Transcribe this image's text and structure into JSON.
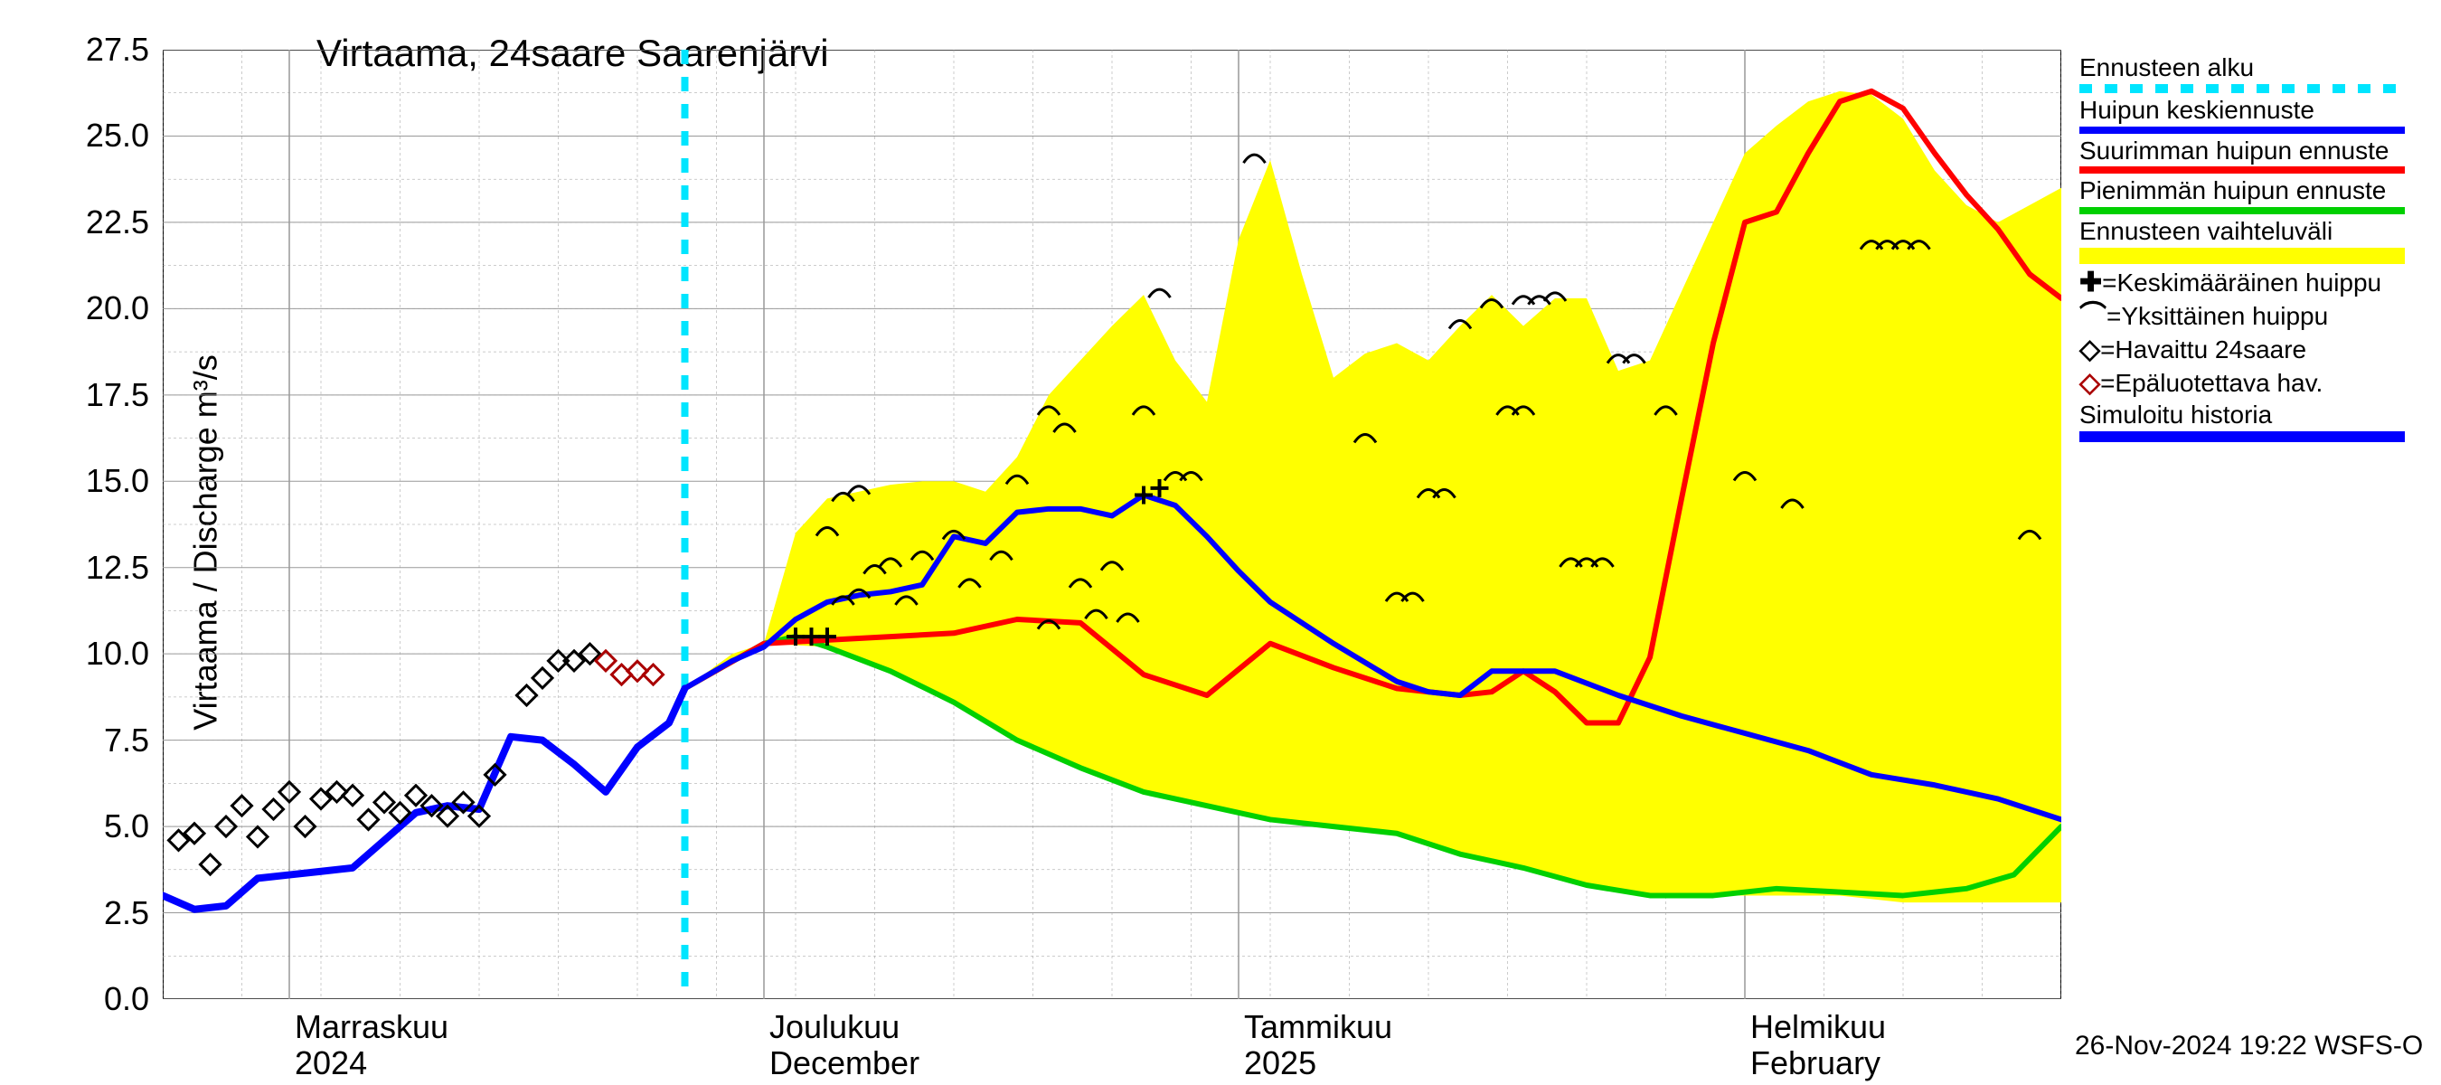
{
  "chart": {
    "type": "line",
    "title": "Virtaama, 24saare Saarenjärvi",
    "title_fontsize": 42,
    "y_label": "Virtaama / Discharge   m³/s",
    "label_fontsize": 36,
    "tick_fontsize": 36,
    "background_color": "#ffffff",
    "grid_color": "#999999",
    "grid_on": true,
    "minor_grid_on": true,
    "ylim": [
      0.0,
      27.5
    ],
    "ytick_step": 2.5,
    "yticks": [
      0.0,
      2.5,
      5.0,
      7.5,
      10.0,
      12.5,
      15.0,
      17.5,
      20.0,
      22.5,
      25.0,
      27.5
    ],
    "xlim": [
      0,
      120
    ],
    "x_major_ticks_days": [
      8,
      38,
      68,
      100
    ],
    "x_minor_step_days": 5,
    "x_tick_labels": [
      {
        "day": 8,
        "line1": "Marraskuu",
        "line2": "2024"
      },
      {
        "day": 38,
        "line1": "Joulukuu",
        "line2": "December"
      },
      {
        "day": 68,
        "line1": "Tammikuu",
        "line2": "2025"
      },
      {
        "day": 100,
        "line1": "Helmikuu",
        "line2": "February"
      }
    ],
    "forecast_start_day": 33,
    "colors": {
      "forecast_start": "#00e5ff",
      "mean_peak": "#0000ff",
      "max_peak": "#ff0000",
      "min_peak": "#00d000",
      "range_fill": "#ffff00",
      "sim_history": "#0000ff",
      "obs_marker_edge": "#000000",
      "unreliable_marker_edge": "#aa0000",
      "avg_peak_marker": "#000000",
      "single_peak_marker": "#000000"
    },
    "line_widths": {
      "mean_peak": 6,
      "max_peak": 6,
      "min_peak": 6,
      "sim_history": 8,
      "forecast_start": 8
    },
    "series": {
      "sim_history_days": [
        0,
        2,
        4,
        6,
        8,
        10,
        12,
        14,
        16,
        18,
        20,
        22,
        24,
        26,
        28,
        30,
        32,
        33
      ],
      "sim_history_vals": [
        3.0,
        2.6,
        2.7,
        3.5,
        3.6,
        3.7,
        3.8,
        4.6,
        5.4,
        5.6,
        5.5,
        7.6,
        7.5,
        6.8,
        6.0,
        7.3,
        8.0,
        9.0
      ],
      "mean_peak_days": [
        33,
        36,
        38,
        40,
        42,
        44,
        46,
        48,
        50,
        52,
        54,
        56,
        58,
        60,
        62,
        64,
        66,
        68,
        70,
        74,
        78,
        80,
        82,
        84,
        88,
        92,
        96,
        100,
        104,
        108,
        112,
        116,
        120
      ],
      "mean_peak_vals": [
        9.0,
        9.8,
        10.2,
        11.0,
        11.5,
        11.7,
        11.8,
        12.0,
        13.4,
        13.2,
        14.1,
        14.2,
        14.2,
        14.0,
        14.6,
        14.3,
        13.4,
        12.4,
        11.5,
        10.3,
        9.2,
        8.9,
        8.8,
        9.5,
        9.5,
        8.8,
        8.2,
        7.7,
        7.2,
        6.5,
        6.2,
        5.8,
        5.2
      ],
      "max_peak_days": [
        33,
        38,
        42,
        46,
        50,
        54,
        58,
        62,
        66,
        70,
        74,
        78,
        82,
        84,
        86,
        88,
        90,
        92,
        94,
        96,
        98,
        100,
        102,
        104,
        106,
        108,
        110,
        112,
        114,
        116,
        118,
        120
      ],
      "max_peak_vals": [
        9.0,
        10.3,
        10.4,
        10.5,
        10.6,
        11.0,
        10.9,
        9.4,
        8.8,
        10.3,
        9.6,
        9.0,
        8.8,
        8.9,
        9.5,
        8.9,
        8.0,
        8.0,
        9.9,
        14.5,
        19.0,
        22.5,
        22.8,
        24.5,
        26.0,
        26.3,
        25.8,
        24.5,
        23.3,
        22.3,
        21.0,
        20.3
      ],
      "min_peak_days": [
        33,
        38,
        40,
        42,
        46,
        50,
        54,
        58,
        62,
        66,
        70,
        74,
        78,
        82,
        86,
        90,
        94,
        98,
        102,
        106,
        110,
        114,
        117,
        120
      ],
      "min_peak_vals": [
        9.0,
        10.3,
        10.5,
        10.2,
        9.5,
        8.6,
        7.5,
        6.7,
        6.0,
        5.6,
        5.2,
        5.0,
        4.8,
        4.2,
        3.8,
        3.3,
        3.0,
        3.0,
        3.2,
        3.1,
        3.0,
        3.2,
        3.6,
        5.0
      ],
      "range_upper_days": [
        33,
        36,
        38,
        40,
        42,
        44,
        46,
        48,
        50,
        52,
        54,
        56,
        58,
        60,
        62,
        64,
        66,
        68,
        70,
        72,
        74,
        76,
        78,
        80,
        82,
        84,
        86,
        88,
        90,
        92,
        94,
        96,
        98,
        100,
        102,
        104,
        106,
        108,
        110,
        112,
        114,
        116,
        118,
        120
      ],
      "range_upper_vals": [
        9.0,
        10.0,
        10.3,
        13.5,
        14.5,
        14.7,
        14.9,
        15.0,
        15.0,
        14.7,
        15.7,
        17.5,
        18.5,
        19.5,
        20.4,
        18.5,
        17.3,
        22.0,
        24.3,
        21.0,
        18.0,
        18.7,
        19.0,
        18.5,
        19.5,
        20.4,
        19.5,
        20.3,
        20.3,
        18.2,
        18.5,
        20.5,
        22.5,
        24.5,
        25.3,
        26.0,
        26.3,
        26.2,
        25.5,
        24.0,
        23.0,
        22.5,
        23.0,
        23.5
      ],
      "range_lower_days": [
        33,
        38,
        42,
        46,
        50,
        54,
        58,
        62,
        66,
        70,
        74,
        78,
        82,
        86,
        90,
        94,
        98,
        102,
        106,
        110,
        114,
        117,
        120
      ],
      "range_lower_vals": [
        9.0,
        10.3,
        10.2,
        9.5,
        8.6,
        7.5,
        6.7,
        6.0,
        5.6,
        5.2,
        5.0,
        4.8,
        4.2,
        3.8,
        3.3,
        3.0,
        3.0,
        3.0,
        3.0,
        2.8,
        2.8,
        2.8,
        2.8
      ]
    },
    "observations": [
      {
        "day": 1,
        "val": 4.6
      },
      {
        "day": 2,
        "val": 4.8
      },
      {
        "day": 3,
        "val": 3.9
      },
      {
        "day": 4,
        "val": 5.0
      },
      {
        "day": 5,
        "val": 5.6
      },
      {
        "day": 6,
        "val": 4.7
      },
      {
        "day": 7,
        "val": 5.5
      },
      {
        "day": 8,
        "val": 6.0
      },
      {
        "day": 9,
        "val": 5.0
      },
      {
        "day": 10,
        "val": 5.8
      },
      {
        "day": 11,
        "val": 6.0
      },
      {
        "day": 12,
        "val": 5.9
      },
      {
        "day": 13,
        "val": 5.2
      },
      {
        "day": 14,
        "val": 5.7
      },
      {
        "day": 15,
        "val": 5.4
      },
      {
        "day": 16,
        "val": 5.9
      },
      {
        "day": 17,
        "val": 5.6
      },
      {
        "day": 18,
        "val": 5.3
      },
      {
        "day": 19,
        "val": 5.7
      },
      {
        "day": 20,
        "val": 5.3
      },
      {
        "day": 21,
        "val": 6.5
      },
      {
        "day": 23,
        "val": 8.8
      },
      {
        "day": 24,
        "val": 9.3
      },
      {
        "day": 25,
        "val": 9.8
      },
      {
        "day": 26,
        "val": 9.8
      },
      {
        "day": 27,
        "val": 10.0
      }
    ],
    "unreliable_obs": [
      {
        "day": 28,
        "val": 9.8
      },
      {
        "day": 29,
        "val": 9.4
      },
      {
        "day": 30,
        "val": 9.5
      },
      {
        "day": 31,
        "val": 9.4
      }
    ],
    "avg_peak_markers": [
      {
        "day": 40,
        "val": 10.5
      },
      {
        "day": 41,
        "val": 10.5
      },
      {
        "day": 42,
        "val": 10.5
      },
      {
        "day": 63,
        "val": 14.8
      },
      {
        "day": 62,
        "val": 14.6
      }
    ],
    "single_peak_markers": [
      {
        "day": 42,
        "val": 13.5
      },
      {
        "day": 43,
        "val": 14.5
      },
      {
        "day": 44,
        "val": 14.7
      },
      {
        "day": 43,
        "val": 11.5
      },
      {
        "day": 44,
        "val": 11.7
      },
      {
        "day": 45,
        "val": 12.4
      },
      {
        "day": 46,
        "val": 12.6
      },
      {
        "day": 47,
        "val": 11.5
      },
      {
        "day": 48,
        "val": 12.8
      },
      {
        "day": 50,
        "val": 13.4
      },
      {
        "day": 51,
        "val": 12.0
      },
      {
        "day": 53,
        "val": 12.8
      },
      {
        "day": 54,
        "val": 15.0
      },
      {
        "day": 56,
        "val": 10.8
      },
      {
        "day": 56,
        "val": 17.0
      },
      {
        "day": 57,
        "val": 16.5
      },
      {
        "day": 58,
        "val": 12.0
      },
      {
        "day": 59,
        "val": 11.1
      },
      {
        "day": 60,
        "val": 12.5
      },
      {
        "day": 61,
        "val": 11.0
      },
      {
        "day": 62,
        "val": 17.0
      },
      {
        "day": 63,
        "val": 20.4
      },
      {
        "day": 64,
        "val": 15.1
      },
      {
        "day": 65,
        "val": 15.1
      },
      {
        "day": 69,
        "val": 24.3
      },
      {
        "day": 76,
        "val": 16.2
      },
      {
        "day": 78,
        "val": 11.6
      },
      {
        "day": 79,
        "val": 11.6
      },
      {
        "day": 80,
        "val": 14.6
      },
      {
        "day": 81,
        "val": 14.6
      },
      {
        "day": 82,
        "val": 19.5
      },
      {
        "day": 84,
        "val": 20.1
      },
      {
        "day": 85,
        "val": 17.0
      },
      {
        "day": 86,
        "val": 17.0
      },
      {
        "day": 86,
        "val": 20.2
      },
      {
        "day": 87,
        "val": 20.2
      },
      {
        "day": 88,
        "val": 20.3
      },
      {
        "day": 89,
        "val": 12.6
      },
      {
        "day": 90,
        "val": 12.6
      },
      {
        "day": 91,
        "val": 12.6
      },
      {
        "day": 92,
        "val": 18.5
      },
      {
        "day": 93,
        "val": 18.5
      },
      {
        "day": 95,
        "val": 17.0
      },
      {
        "day": 100,
        "val": 15.1
      },
      {
        "day": 103,
        "val": 14.3
      },
      {
        "day": 108,
        "val": 21.8
      },
      {
        "day": 109,
        "val": 21.8
      },
      {
        "day": 110,
        "val": 21.8
      },
      {
        "day": 111,
        "val": 21.8
      },
      {
        "day": 118,
        "val": 13.4
      }
    ],
    "legend": {
      "items": [
        {
          "key": "forecast_start",
          "label": "Ennusteen alku",
          "style": "dashed",
          "color": "#00e5ff"
        },
        {
          "key": "mean_peak",
          "label": "Huipun keskiennuste",
          "style": "solid",
          "color": "#0000ff"
        },
        {
          "key": "max_peak",
          "label": "Suurimman huipun ennuste",
          "style": "solid",
          "color": "#ff0000"
        },
        {
          "key": "min_peak",
          "label": "Pienimmän huipun ennuste",
          "style": "solid",
          "color": "#00d000"
        },
        {
          "key": "range",
          "label": "Ennusteen vaihteluväli",
          "style": "fill",
          "color": "#ffff00"
        },
        {
          "key": "avg_peak",
          "label": "=Keskimääräinen huippu",
          "style": "marker",
          "marker": "✚"
        },
        {
          "key": "single_peak",
          "label": "=Yksittäinen huippu",
          "style": "marker",
          "marker": "⌒"
        },
        {
          "key": "obs",
          "label": "=Havaittu 24saare",
          "style": "marker",
          "marker": "◇"
        },
        {
          "key": "unreliable",
          "label": "=Epäluotettava hav.",
          "style": "marker",
          "marker": "◇",
          "marker_color": "#aa0000"
        },
        {
          "key": "sim_history",
          "label": "Simuloitu historia",
          "style": "solid",
          "color": "#0000ff",
          "thick": true
        }
      ],
      "fontsize": 28
    }
  },
  "timestamp": "26-Nov-2024 19:22 WSFS-O"
}
